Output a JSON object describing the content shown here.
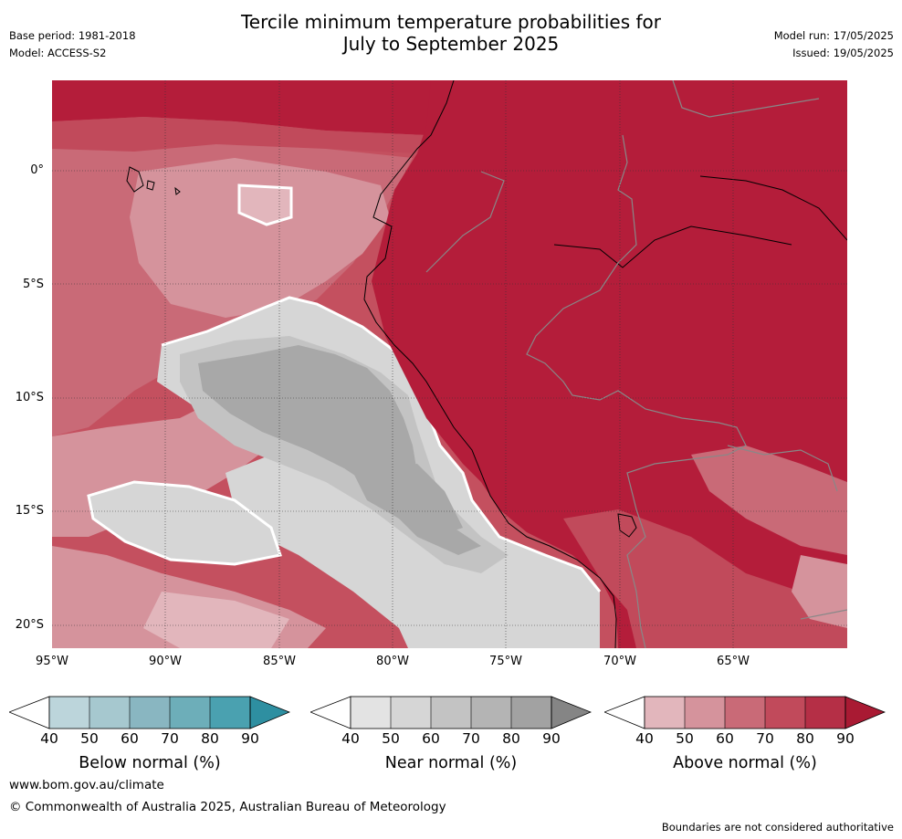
{
  "header": {
    "title_line1": "Tercile minimum temperature probabilities for",
    "title_line2": "July to September 2025",
    "base_period": "Base period: 1981-2018",
    "model": "Model: ACCESS-S2",
    "model_run": "Model run: 17/05/2025",
    "issued": "Issued: 19/05/2025"
  },
  "map": {
    "lat_labels": [
      "0°",
      "5°S",
      "10°S",
      "15°S",
      "20°S"
    ],
    "lon_labels": [
      "95°W",
      "90°W",
      "85°W",
      "80°W",
      "75°W",
      "70°W",
      "65°W"
    ],
    "colors": {
      "ocean_base": "#c4505f",
      "land_high": "#b41d3a",
      "above_50": "#d5939c",
      "above_60": "#c96a77",
      "above_70": "#c14a5b",
      "near_50": "#d6d6d6",
      "near_60": "#c3c3c3",
      "near_70": "#a8a8a8",
      "border": "#888888",
      "coast": "#000000"
    }
  },
  "legends": [
    {
      "title": "Below normal (%)",
      "ticks": [
        "40",
        "50",
        "60",
        "70",
        "80",
        "90"
      ],
      "colors": [
        "#ffffff",
        "#bcd5db",
        "#a6c8cf",
        "#89b6c1",
        "#6daeb9",
        "#4aa1b0",
        "#2e8fa1"
      ]
    },
    {
      "title": "Near normal (%)",
      "ticks": [
        "40",
        "50",
        "60",
        "70",
        "80",
        "90"
      ],
      "colors": [
        "#ffffff",
        "#e3e3e3",
        "#d6d6d6",
        "#c3c3c3",
        "#b4b4b4",
        "#a2a2a2",
        "#858585"
      ]
    },
    {
      "title": "Above normal (%)",
      "ticks": [
        "40",
        "50",
        "60",
        "70",
        "80",
        "90"
      ],
      "colors": [
        "#ffffff",
        "#e2b6bc",
        "#d5939c",
        "#c96a77",
        "#c14a5b",
        "#b52f46",
        "#a91a33"
      ]
    }
  ],
  "footer": {
    "website": "www.bom.gov.au/climate",
    "copyright": "© Commonwealth of Australia 2025, Australian Bureau of Meteorology",
    "disclaimer": "Boundaries are not considered authoritative"
  }
}
